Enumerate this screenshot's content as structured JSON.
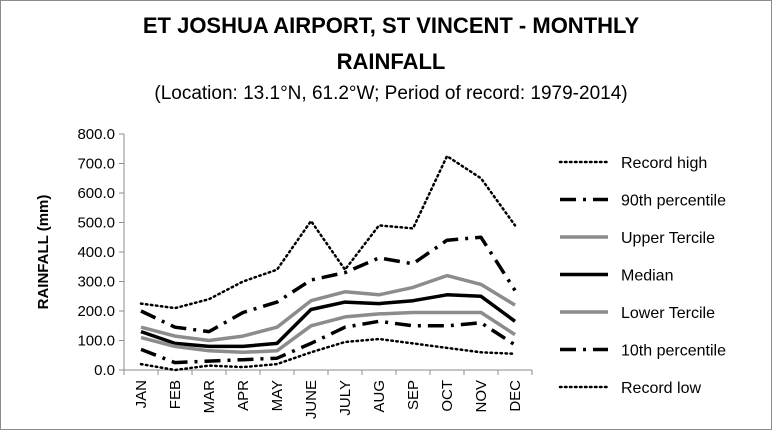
{
  "chart_data": {
    "type": "line",
    "title_line1": "ET JOSHUA AIRPORT, ST VINCENT - MONTHLY",
    "title_line2": "RAINFALL",
    "subtitle": "(Location: 13.1°N, 61.2°W; Period of record: 1979-2014)",
    "xlabel": "",
    "ylabel": "RAINFALL (mm)",
    "ylim": [
      0,
      800
    ],
    "yticks": [
      "0.0",
      "100.0",
      "200.0",
      "300.0",
      "400.0",
      "500.0",
      "600.0",
      "700.0",
      "800.0"
    ],
    "categories": [
      "JAN",
      "FEB",
      "MAR",
      "APR",
      "MAY",
      "JUNE",
      "JULY",
      "AUG",
      "SEP",
      "OCT",
      "NOV",
      "DEC"
    ],
    "legend_position": "right",
    "grid": false,
    "series": [
      {
        "name": "Record high",
        "style": "dotted",
        "color": "#000000",
        "values": [
          225,
          210,
          240,
          300,
          340,
          505,
          340,
          490,
          480,
          725,
          650,
          490
        ]
      },
      {
        "name": "90th percentile",
        "style": "dashdot",
        "color": "#000000",
        "values": [
          200,
          145,
          130,
          195,
          230,
          305,
          330,
          380,
          360,
          440,
          450,
          270
        ]
      },
      {
        "name": "Upper Tercile",
        "style": "solid-gray",
        "color": "#8c8c8c",
        "values": [
          145,
          115,
          100,
          115,
          145,
          235,
          265,
          255,
          280,
          320,
          290,
          220
        ]
      },
      {
        "name": "Median",
        "style": "solid",
        "color": "#000000",
        "values": [
          130,
          90,
          80,
          80,
          90,
          205,
          230,
          225,
          235,
          255,
          250,
          165
        ]
      },
      {
        "name": "Lower Tercile",
        "style": "solid-gray",
        "color": "#8c8c8c",
        "values": [
          110,
          80,
          65,
          60,
          65,
          150,
          180,
          190,
          195,
          195,
          195,
          120
        ]
      },
      {
        "name": "10th percentile",
        "style": "dashdot",
        "color": "#000000",
        "values": [
          70,
          25,
          30,
          35,
          40,
          90,
          145,
          165,
          150,
          150,
          160,
          85
        ]
      },
      {
        "name": "Record low",
        "style": "dotted",
        "color": "#000000",
        "values": [
          20,
          0,
          15,
          10,
          20,
          60,
          95,
          105,
          90,
          75,
          60,
          55
        ]
      }
    ]
  }
}
